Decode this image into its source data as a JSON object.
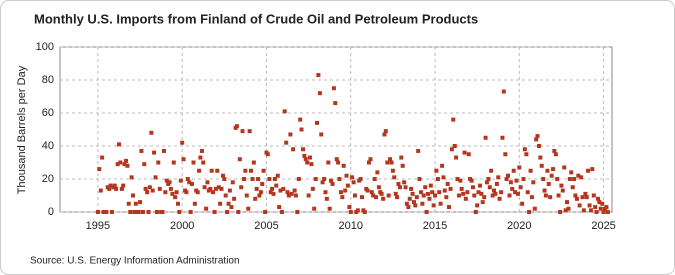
{
  "chart_data": {
    "type": "scatter",
    "title": "Monthly U.S. Imports from Finland of Crude Oil and Petroleum Products",
    "y_label": "Thousand Barrels per Day",
    "source": "Source: U.S. Energy Information Administration",
    "color": "#b5361f",
    "grid": true,
    "xlim": [
      1992.75,
      2025.5
    ],
    "xticks": [
      1995,
      2000,
      2005,
      2010,
      2015,
      2020,
      2025
    ],
    "ylim": [
      0,
      100
    ],
    "yticks": [
      0,
      20,
      40,
      60,
      80,
      100
    ],
    "x": [
      1995,
      1995.08,
      1995.17,
      1995.25,
      1995.33,
      1995.42,
      1995.5,
      1995.58,
      1995.67,
      1995.75,
      1995.83,
      1995.92,
      1996,
      1996.08,
      1996.17,
      1996.25,
      1996.33,
      1996.42,
      1996.5,
      1996.58,
      1996.67,
      1996.75,
      1996.83,
      1996.92,
      1997,
      1997.08,
      1997.17,
      1997.25,
      1997.33,
      1997.42,
      1997.5,
      1997.58,
      1997.67,
      1997.75,
      1997.83,
      1997.92,
      1998,
      1998.08,
      1998.17,
      1998.25,
      1998.33,
      1998.42,
      1998.5,
      1998.58,
      1998.67,
      1998.75,
      1998.83,
      1998.92,
      1999,
      1999.08,
      1999.17,
      1999.25,
      1999.33,
      1999.42,
      1999.5,
      1999.58,
      1999.67,
      1999.75,
      1999.83,
      1999.92,
      2000,
      2000.08,
      2000.17,
      2000.25,
      2000.33,
      2000.42,
      2000.5,
      2000.58,
      2000.67,
      2000.75,
      2000.83,
      2000.92,
      2001,
      2001.08,
      2001.17,
      2001.25,
      2001.33,
      2001.42,
      2001.5,
      2001.58,
      2001.67,
      2001.75,
      2001.83,
      2001.92,
      2002,
      2002.08,
      2002.17,
      2002.25,
      2002.33,
      2002.42,
      2002.5,
      2002.58,
      2002.67,
      2002.75,
      2002.83,
      2002.92,
      2003,
      2003.08,
      2003.17,
      2003.25,
      2003.33,
      2003.42,
      2003.5,
      2003.58,
      2003.67,
      2003.75,
      2003.83,
      2003.92,
      2004,
      2004.08,
      2004.17,
      2004.25,
      2004.33,
      2004.42,
      2004.5,
      2004.58,
      2004.67,
      2004.75,
      2004.83,
      2004.92,
      2005,
      2005.08,
      2005.17,
      2005.25,
      2005.33,
      2005.42,
      2005.5,
      2005.58,
      2005.67,
      2005.75,
      2005.83,
      2005.92,
      2006,
      2006.08,
      2006.17,
      2006.25,
      2006.33,
      2006.42,
      2006.5,
      2006.58,
      2006.67,
      2006.75,
      2006.83,
      2006.92,
      2007,
      2007.08,
      2007.17,
      2007.25,
      2007.33,
      2007.42,
      2007.5,
      2007.58,
      2007.67,
      2007.75,
      2007.83,
      2007.92,
      2008,
      2008.08,
      2008.17,
      2008.25,
      2008.33,
      2008.42,
      2008.5,
      2008.58,
      2008.67,
      2008.75,
      2008.83,
      2008.92,
      2009,
      2009.08,
      2009.17,
      2009.25,
      2009.33,
      2009.42,
      2009.5,
      2009.58,
      2009.67,
      2009.75,
      2009.83,
      2009.92,
      2010,
      2010.08,
      2010.17,
      2010.25,
      2010.33,
      2010.42,
      2010.5,
      2010.58,
      2010.67,
      2010.75,
      2010.83,
      2010.92,
      2011,
      2011.08,
      2011.17,
      2011.25,
      2011.33,
      2011.42,
      2011.5,
      2011.58,
      2011.67,
      2011.75,
      2011.83,
      2011.92,
      2012,
      2012.08,
      2012.17,
      2012.25,
      2012.33,
      2012.42,
      2012.5,
      2012.58,
      2012.67,
      2012.75,
      2012.83,
      2012.92,
      2013,
      2013.08,
      2013.17,
      2013.25,
      2013.33,
      2013.42,
      2013.5,
      2013.58,
      2013.67,
      2013.75,
      2013.83,
      2013.92,
      2014,
      2014.08,
      2014.17,
      2014.25,
      2014.33,
      2014.42,
      2014.5,
      2014.58,
      2014.67,
      2014.75,
      2014.83,
      2014.92,
      2015,
      2015.08,
      2015.17,
      2015.25,
      2015.33,
      2015.42,
      2015.5,
      2015.58,
      2015.67,
      2015.75,
      2015.83,
      2015.92,
      2016,
      2016.08,
      2016.17,
      2016.25,
      2016.33,
      2016.42,
      2016.5,
      2016.58,
      2016.67,
      2016.75,
      2016.83,
      2016.92,
      2017,
      2017.08,
      2017.17,
      2017.25,
      2017.33,
      2017.42,
      2017.5,
      2017.58,
      2017.67,
      2017.75,
      2017.83,
      2017.92,
      2018,
      2018.08,
      2018.17,
      2018.25,
      2018.33,
      2018.42,
      2018.5,
      2018.58,
      2018.67,
      2018.75,
      2018.83,
      2018.92,
      2019,
      2019.08,
      2019.17,
      2019.25,
      2019.33,
      2019.42,
      2019.5,
      2019.58,
      2019.67,
      2019.75,
      2019.83,
      2019.92,
      2020,
      2020.08,
      2020.17,
      2020.25,
      2020.33,
      2020.42,
      2020.5,
      2020.58,
      2020.67,
      2020.75,
      2020.83,
      2020.92,
      2021,
      2021.08,
      2021.17,
      2021.25,
      2021.33,
      2021.42,
      2021.5,
      2021.58,
      2021.67,
      2021.75,
      2021.83,
      2021.92,
      2022,
      2022.08,
      2022.17,
      2022.25,
      2022.33,
      2022.42,
      2022.5,
      2022.58,
      2022.67,
      2022.75,
      2022.83,
      2022.92,
      2023,
      2023.08,
      2023.17,
      2023.25,
      2023.33,
      2023.42,
      2023.5,
      2023.58,
      2023.67,
      2023.75,
      2023.83,
      2023.92,
      2024,
      2024.08,
      2024.17,
      2024.25,
      2024.33,
      2024.42,
      2024.5,
      2024.58,
      2024.67,
      2024.75,
      2024.83,
      2024.92,
      2025,
      2025.08,
      2025.17,
      2025.25
    ],
    "values": [
      0,
      26,
      13,
      33,
      0,
      0,
      0,
      15,
      14,
      16,
      0,
      15,
      16,
      14,
      29,
      41,
      30,
      14,
      16,
      29,
      31,
      28,
      5,
      0,
      21,
      10,
      0,
      5,
      0,
      0,
      6,
      37,
      0,
      29,
      14,
      12,
      0,
      15,
      48,
      13,
      36,
      21,
      0,
      30,
      14,
      0,
      0,
      37,
      12,
      19,
      17,
      18,
      14,
      11,
      30,
      9,
      12,
      5,
      0,
      19,
      42,
      32,
      13,
      12,
      20,
      18,
      0,
      17,
      30,
      5,
      13,
      12,
      25,
      33,
      37,
      30,
      15,
      2,
      18,
      13,
      14,
      25,
      12,
      0,
      14,
      25,
      15,
      5,
      14,
      22,
      20,
      10,
      0,
      5,
      13,
      3,
      18,
      8,
      51,
      52,
      0,
      32,
      15,
      49,
      20,
      25,
      10,
      2,
      49,
      25,
      20,
      30,
      8,
      14,
      20,
      10,
      12,
      17,
      25,
      0,
      36,
      35,
      20,
      12,
      14,
      11,
      20,
      16,
      22,
      3,
      13,
      0,
      14,
      61,
      42,
      12,
      10,
      47,
      11,
      38,
      13,
      10,
      0,
      20,
      56,
      50,
      38,
      34,
      32,
      30,
      10,
      33,
      29,
      14,
      2,
      20,
      54,
      83,
      72,
      47,
      18,
      20,
      12,
      8,
      30,
      2,
      19,
      17,
      75,
      66,
      32,
      30,
      20,
      12,
      9,
      28,
      13,
      22,
      16,
      3,
      0,
      21,
      18,
      10,
      0,
      1,
      19,
      20,
      9,
      1,
      0,
      14,
      13,
      30,
      32,
      12,
      10,
      20,
      9,
      24,
      15,
      12,
      11,
      8,
      47,
      49,
      30,
      10,
      32,
      30,
      25,
      21,
      11,
      9,
      17,
      15,
      33,
      28,
      18,
      15,
      5,
      3,
      8,
      14,
      11,
      6,
      4,
      9,
      37,
      20,
      12,
      5,
      10,
      15,
      0,
      11,
      8,
      16,
      12,
      4,
      10,
      25,
      20,
      12,
      5,
      28,
      21,
      13,
      9,
      17,
      3,
      14,
      38,
      56,
      40,
      33,
      20,
      10,
      19,
      14,
      11,
      36,
      8,
      12,
      35,
      20,
      19,
      15,
      10,
      0,
      4,
      12,
      16,
      11,
      6,
      9,
      45,
      18,
      20,
      15,
      25,
      10,
      13,
      11,
      17,
      21,
      8,
      12,
      45,
      73,
      35,
      20,
      22,
      10,
      18,
      14,
      25,
      12,
      19,
      11,
      27,
      15,
      5,
      20,
      38,
      35,
      12,
      0,
      25,
      9,
      18,
      2,
      44,
      46,
      40,
      33,
      28,
      20,
      13,
      10,
      25,
      17,
      9,
      22,
      26,
      37,
      35,
      20,
      10,
      0,
      16,
      13,
      27,
      1,
      6,
      2,
      20,
      24,
      15,
      20,
      10,
      8,
      22,
      4,
      21,
      9,
      1,
      11,
      9,
      25,
      4,
      1,
      26,
      10,
      3,
      0,
      8,
      6,
      2,
      5,
      0,
      2,
      3,
      0
    ]
  }
}
